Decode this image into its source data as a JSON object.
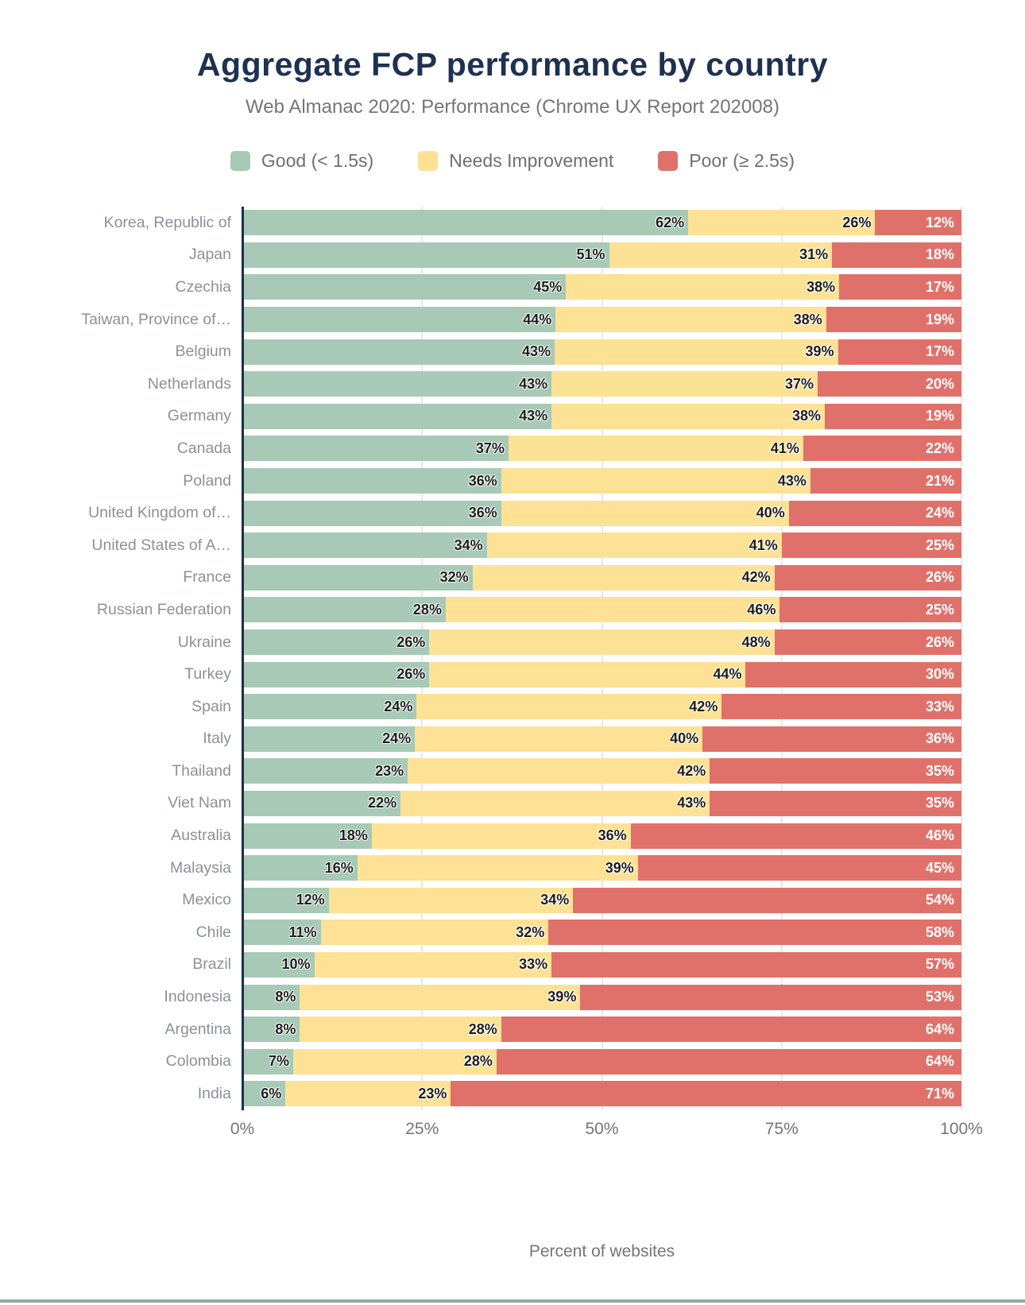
{
  "title": "Aggregate FCP performance by country",
  "subtitle": "Web Almanac 2020: Performance (Chrome UX Report 202008)",
  "xlabel": "Percent of websites",
  "colors": {
    "good": "#a7c9b6",
    "needs_improvement": "#fde195",
    "poor": "#e0716a",
    "axis": "#1b2f4e",
    "title": "#1e3150",
    "grid": "#e7e7e7",
    "category_label": "#8b9199",
    "tick_label": "#757575",
    "bottom_strip": "#9aa3a5"
  },
  "legend": [
    {
      "label": "Good (< 1.5s)",
      "color_key": "good"
    },
    {
      "label": "Needs Improvement",
      "color_key": "needs_improvement"
    },
    {
      "label": "Poor (≥ 2.5s)",
      "color_key": "poor"
    }
  ],
  "chart_data": {
    "type": "bar",
    "orientation": "horizontal-stacked",
    "categories": [
      "Korea, Republic of",
      "Japan",
      "Czechia",
      "Taiwan, Province of…",
      "Belgium",
      "Netherlands",
      "Germany",
      "Canada",
      "Poland",
      "United Kingdom of…",
      "United States of A…",
      "France",
      "Russian Federation",
      "Ukraine",
      "Turkey",
      "Spain",
      "Italy",
      "Thailand",
      "Viet Nam",
      "Australia",
      "Malaysia",
      "Mexico",
      "Chile",
      "Brazil",
      "Indonesia",
      "Argentina",
      "Colombia",
      "India"
    ],
    "series": [
      {
        "name": "Good (< 1.5s)",
        "values": [
          62,
          51,
          45,
          44,
          43,
          43,
          43,
          37,
          36,
          36,
          34,
          32,
          28,
          26,
          26,
          24,
          24,
          23,
          22,
          18,
          16,
          12,
          11,
          10,
          8,
          8,
          7,
          6
        ]
      },
      {
        "name": "Needs Improvement",
        "values": [
          26,
          31,
          38,
          38,
          39,
          37,
          38,
          41,
          43,
          40,
          41,
          42,
          46,
          48,
          44,
          42,
          40,
          42,
          43,
          36,
          39,
          34,
          32,
          33,
          39,
          28,
          28,
          23
        ]
      },
      {
        "name": "Poor (≥ 2.5s)",
        "values": [
          12,
          18,
          17,
          19,
          17,
          20,
          19,
          22,
          21,
          24,
          25,
          26,
          25,
          26,
          30,
          33,
          36,
          35,
          35,
          46,
          45,
          54,
          58,
          57,
          53,
          64,
          64,
          71
        ]
      }
    ],
    "value_suffix": "%",
    "xlabel": "Percent of websites",
    "x_ticks": [
      "0%",
      "25%",
      "50%",
      "75%",
      "100%"
    ],
    "xlim": [
      0,
      100
    ],
    "grid": "vertical",
    "legend_position": "top"
  }
}
